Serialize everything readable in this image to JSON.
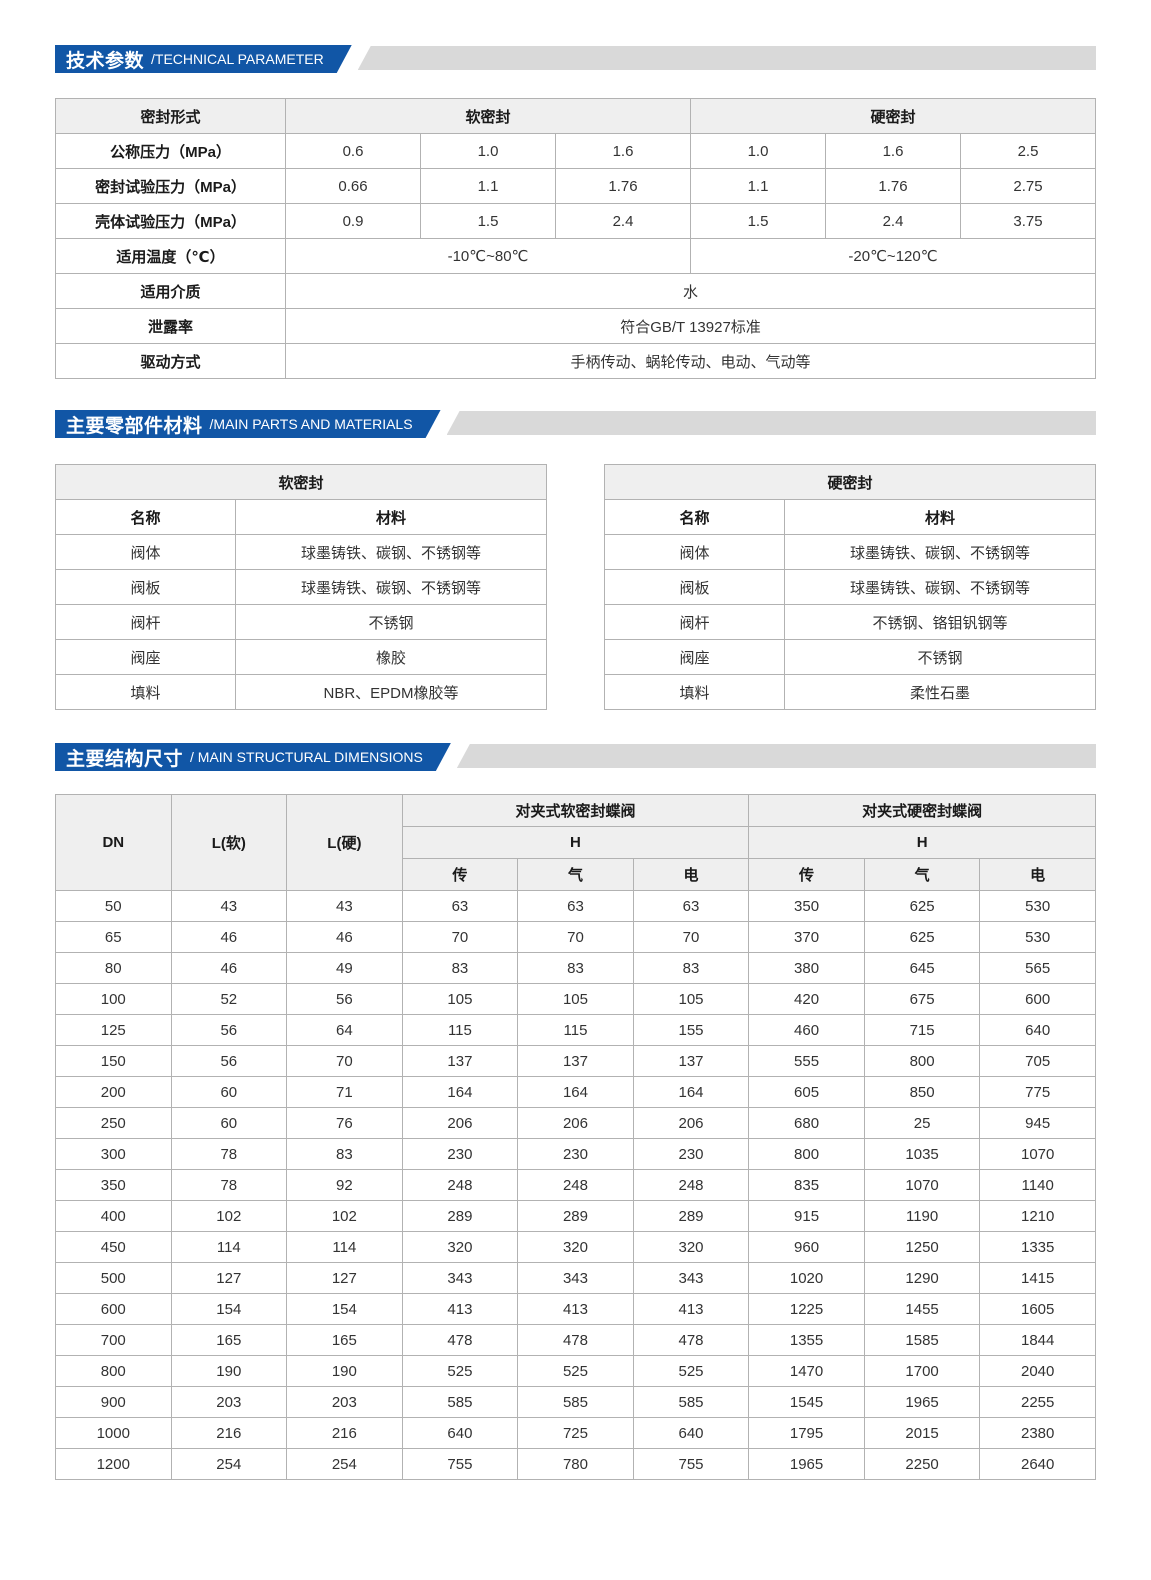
{
  "colors": {
    "banner_blue": "#1156a6",
    "banner_gray": "#d9d9d9",
    "table_header_bg": "#efefef",
    "table_border": "#b2b2b2",
    "body_text": "#333333"
  },
  "sections": {
    "technical": {
      "title_cn": "技术参数",
      "title_en": "/TECHNICAL PARAMETER"
    },
    "materials": {
      "title_cn": "主要零部件材料",
      "title_en": "/MAIN PARTS AND MATERIALS"
    },
    "dimensions": {
      "title_cn": "主要结构尺寸",
      "title_en": "/ MAIN STRUCTURAL DIMENSIONS"
    }
  },
  "tech_table": {
    "header": [
      "密封形式",
      "软密封",
      "硬密封"
    ],
    "rows": [
      {
        "label": "公称压力（MPa）",
        "cells": [
          "0.6",
          "1.0",
          "1.6",
          "1.0",
          "1.6",
          "2.5"
        ]
      },
      {
        "label": "密封试验压力（MPa）",
        "cells": [
          "0.66",
          "1.1",
          "1.76",
          "1.1",
          "1.76",
          "2.75"
        ]
      },
      {
        "label": "壳体试验压力（MPa）",
        "cells": [
          "0.9",
          "1.5",
          "2.4",
          "1.5",
          "2.4",
          "3.75"
        ]
      },
      {
        "label": "适用温度（℃）",
        "cells_span3": [
          "-10℃~80℃",
          "-20℃~120℃"
        ]
      },
      {
        "label": "适用介质",
        "cell_span6": "水"
      },
      {
        "label": "泄露率",
        "cell_span6": "符合GB/T 13927标准"
      },
      {
        "label": "驱动方式",
        "cell_span6": "手柄传动、蜗轮传动、电动、气动等"
      }
    ]
  },
  "materials_tables": {
    "soft": {
      "title": "软密封",
      "col_headers": [
        "名称",
        "材料"
      ],
      "rows": [
        [
          "阀体",
          "球墨铸铁、碳钢、不锈钢等"
        ],
        [
          "阀板",
          "球墨铸铁、碳钢、不锈钢等"
        ],
        [
          "阀杆",
          "不锈钢"
        ],
        [
          "阀座",
          "橡胶"
        ],
        [
          "填料",
          "NBR、EPDM橡胶等"
        ]
      ]
    },
    "hard": {
      "title": "硬密封",
      "col_headers": [
        "名称",
        "材料"
      ],
      "rows": [
        [
          "阀体",
          "球墨铸铁、碳钢、不锈钢等"
        ],
        [
          "阀板",
          "球墨铸铁、碳钢、不锈钢等"
        ],
        [
          "阀杆",
          "不锈钢、铬钼钒钢等"
        ],
        [
          "阀座",
          "不锈钢"
        ],
        [
          "填料",
          "柔性石墨"
        ]
      ]
    }
  },
  "dim_table": {
    "headers": {
      "dn": "DN",
      "l_soft": "L(软)",
      "l_hard": "L(硬)",
      "soft_group": "对夹式软密封蝶阀",
      "hard_group": "对夹式硬密封蝶阀",
      "h": "H",
      "sub": [
        "传",
        "气",
        "电"
      ]
    },
    "rows": [
      [
        "50",
        "43",
        "43",
        "63",
        "63",
        "63",
        "350",
        "625",
        "530"
      ],
      [
        "65",
        "46",
        "46",
        "70",
        "70",
        "70",
        "370",
        "625",
        "530"
      ],
      [
        "80",
        "46",
        "49",
        "83",
        "83",
        "83",
        "380",
        "645",
        "565"
      ],
      [
        "100",
        "52",
        "56",
        "105",
        "105",
        "105",
        "420",
        "675",
        "600"
      ],
      [
        "125",
        "56",
        "64",
        "115",
        "115",
        "155",
        "460",
        "715",
        "640"
      ],
      [
        "150",
        "56",
        "70",
        "137",
        "137",
        "137",
        "555",
        "800",
        "705"
      ],
      [
        "200",
        "60",
        "71",
        "164",
        "164",
        "164",
        "605",
        "850",
        "775"
      ],
      [
        "250",
        "60",
        "76",
        "206",
        "206",
        "206",
        "680",
        "25",
        "945"
      ],
      [
        "300",
        "78",
        "83",
        "230",
        "230",
        "230",
        "800",
        "1035",
        "1070"
      ],
      [
        "350",
        "78",
        "92",
        "248",
        "248",
        "248",
        "835",
        "1070",
        "1140"
      ],
      [
        "400",
        "102",
        "102",
        "289",
        "289",
        "289",
        "915",
        "1190",
        "1210"
      ],
      [
        "450",
        "114",
        "114",
        "320",
        "320",
        "320",
        "960",
        "1250",
        "1335"
      ],
      [
        "500",
        "127",
        "127",
        "343",
        "343",
        "343",
        "1020",
        "1290",
        "1415"
      ],
      [
        "600",
        "154",
        "154",
        "413",
        "413",
        "413",
        "1225",
        "1455",
        "1605"
      ],
      [
        "700",
        "165",
        "165",
        "478",
        "478",
        "478",
        "1355",
        "1585",
        "1844"
      ],
      [
        "800",
        "190",
        "190",
        "525",
        "525",
        "525",
        "1470",
        "1700",
        "2040"
      ],
      [
        "900",
        "203",
        "203",
        "585",
        "585",
        "585",
        "1545",
        "1965",
        "2255"
      ],
      [
        "1000",
        "216",
        "216",
        "640",
        "725",
        "640",
        "1795",
        "2015",
        "2380"
      ],
      [
        "1200",
        "254",
        "254",
        "755",
        "780",
        "755",
        "1965",
        "2250",
        "2640"
      ]
    ]
  }
}
